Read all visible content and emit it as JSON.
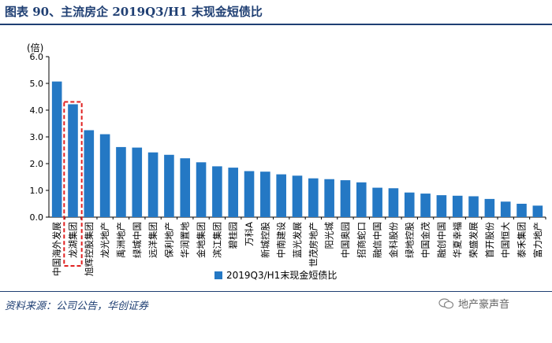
{
  "title": "图表 90、主流房企 2019Q3/H1 末现金短债比",
  "source": "资料来源：公司公告，华创证券",
  "watermark": {
    "text": "地产豪声音",
    "icon": "wechat-icon"
  },
  "chart_data": {
    "type": "bar",
    "ylabel": "(倍)",
    "ylim": [
      0,
      6
    ],
    "yticks": [
      "0.0",
      "1.0",
      "2.0",
      "3.0",
      "4.0",
      "5.0",
      "6.0"
    ],
    "grid": false,
    "legend_position": "bottom-center",
    "highlight_category": "龙湖集团",
    "categories": [
      "中国海外发展",
      "龙湖集团",
      "旭辉控股集团",
      "龙光地产",
      "禹洲地产",
      "绿城中国",
      "远洋集团",
      "保利地产",
      "华润置地",
      "金地集团",
      "滨江集团",
      "碧桂园",
      "万科A",
      "新城控股",
      "中南建设",
      "蓝光发展",
      "世茂房地产",
      "阳光城",
      "中国奥园",
      "招商蛇口",
      "融信中国",
      "金科股份",
      "绿地控股",
      "中国金茂",
      "融创中国",
      "华夏幸福",
      "荣盛发展",
      "首开股份",
      "中国恒大",
      "泰禾集团",
      "富力地产"
    ],
    "series": [
      {
        "name": "2019Q3/H1末现金短债比",
        "color": "#2478c4",
        "values": [
          5.07,
          4.22,
          3.25,
          3.1,
          2.62,
          2.6,
          2.42,
          2.33,
          2.2,
          2.05,
          1.9,
          1.85,
          1.72,
          1.7,
          1.6,
          1.55,
          1.45,
          1.42,
          1.38,
          1.3,
          1.1,
          1.08,
          0.92,
          0.88,
          0.82,
          0.8,
          0.78,
          0.68,
          0.58,
          0.5,
          0.43
        ]
      }
    ]
  }
}
